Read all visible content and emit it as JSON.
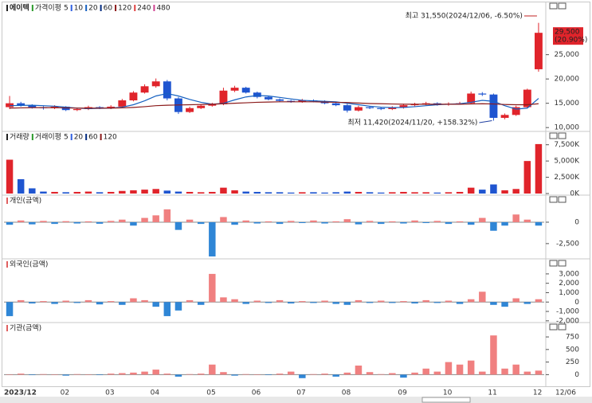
{
  "stock_name": "에이텍",
  "last_date": "12/06",
  "chart_data": [
    {
      "type": "candlestick",
      "categories": [
        "2023/12",
        null,
        null,
        null,
        null,
        "02",
        null,
        null,
        null,
        "03",
        null,
        null,
        null,
        "04",
        null,
        null,
        null,
        null,
        "05",
        null,
        null,
        null,
        "06",
        null,
        null,
        null,
        "07",
        null,
        null,
        null,
        "08",
        null,
        null,
        null,
        null,
        "09",
        null,
        null,
        null,
        "10",
        null,
        null,
        null,
        "11",
        null,
        null,
        null,
        "12"
      ],
      "open": [
        14200,
        15000,
        14600,
        14200,
        14000,
        14300,
        13600,
        13800,
        14200,
        14000,
        14300,
        15600,
        17200,
        18500,
        19500,
        16000,
        13200,
        14000,
        14500,
        14800,
        17600,
        18200,
        17200,
        16300,
        15800,
        15500,
        15300,
        15600,
        15400,
        15000,
        14600,
        13500,
        14200,
        14000,
        13800,
        14100,
        14600,
        14800,
        15000,
        14700,
        14900,
        15000,
        17000,
        16800,
        12000,
        12600,
        14200,
        22000
      ],
      "high": [
        16500,
        15300,
        14800,
        14400,
        14600,
        14400,
        14100,
        14500,
        14400,
        14600,
        15900,
        17500,
        18900,
        20100,
        19800,
        16300,
        14300,
        14800,
        15100,
        18200,
        18600,
        18400,
        17400,
        16500,
        16000,
        15700,
        15900,
        15800,
        15600,
        15200,
        14900,
        14500,
        14400,
        14200,
        14400,
        14900,
        15100,
        15300,
        15200,
        15200,
        15300,
        17400,
        17300,
        17000,
        12900,
        14500,
        18000,
        31550
      ],
      "low": [
        13800,
        14300,
        13900,
        13700,
        13800,
        13400,
        13400,
        13600,
        13800,
        13800,
        14100,
        15400,
        17000,
        18200,
        15600,
        12800,
        13000,
        13800,
        14300,
        14600,
        17300,
        17000,
        16000,
        15600,
        15300,
        15100,
        15100,
        15200,
        14800,
        14400,
        13100,
        13300,
        13800,
        13600,
        13600,
        13900,
        14400,
        14600,
        14500,
        14500,
        14700,
        14800,
        16500,
        11420,
        11700,
        12400,
        14000,
        21500
      ],
      "close": [
        15000,
        14600,
        14200,
        14000,
        14300,
        13600,
        13800,
        14200,
        14000,
        14300,
        15600,
        17200,
        18500,
        19500,
        16000,
        13200,
        14000,
        14500,
        14800,
        17600,
        18200,
        17200,
        16300,
        15800,
        15500,
        15300,
        15600,
        15400,
        15000,
        14600,
        13500,
        14200,
        14000,
        13800,
        14100,
        14600,
        14800,
        15000,
        14700,
        14900,
        15000,
        17000,
        16800,
        12000,
        12600,
        14200,
        17800,
        29500
      ],
      "up_color": "#e0242b",
      "down_color": "#1f55d0",
      "legend_title": "가격이평",
      "series": [
        {
          "name": "5",
          "color": "#2a9a2a"
        },
        {
          "name": "10",
          "color": "#2f5fe0"
        },
        {
          "name": "20",
          "color": "#1560c0",
          "values": [
            14500,
            14550,
            14600,
            14500,
            14400,
            14200,
            14000,
            13900,
            13950,
            14000,
            14200,
            14700,
            15500,
            16500,
            17000,
            16500,
            15800,
            15200,
            14800,
            15000,
            15700,
            16300,
            16600,
            16500,
            16200,
            15900,
            15600,
            15500,
            15400,
            15300,
            15000,
            14700,
            14400,
            14200,
            14100,
            14150,
            14300,
            14500,
            14700,
            14800,
            14900,
            15200,
            15600,
            15400,
            14500,
            13800,
            14000,
            16000
          ]
        },
        {
          "name": "60",
          "color": "#002a80"
        },
        {
          "name": "120",
          "color": "#8b1a1a",
          "values": [
            14000,
            14050,
            14100,
            14100,
            14100,
            14050,
            14000,
            14000,
            14000,
            14000,
            14050,
            14150,
            14300,
            14500,
            14600,
            14650,
            14700,
            14750,
            14800,
            14900,
            15000,
            15100,
            15200,
            15250,
            15300,
            15300,
            15300,
            15300,
            15250,
            15200,
            15150,
            15050,
            14950,
            14900,
            14850,
            14800,
            14800,
            14800,
            14800,
            14800,
            14800,
            14850,
            14900,
            14850,
            14750,
            14700,
            14700,
            14900
          ]
        },
        {
          "name": "240",
          "color": "#e04040"
        },
        {
          "name": "480",
          "color": "#d04090"
        }
      ],
      "ylim": [
        9700,
        33300
      ],
      "yticks": [
        {
          "value": 10000,
          "label": "10,000"
        },
        {
          "value": 15000,
          "label": "15,000"
        },
        {
          "value": 20000,
          "label": "20,000"
        },
        {
          "value": 25000,
          "label": "25,000"
        }
      ],
      "annotations": {
        "high": "최고 31,550(2024/12/06, -6.50%)",
        "low": "최저 11,420(2024/11/20, +158.32%)"
      },
      "last_price_label": "29,500",
      "last_change_label": "(20.90%)"
    },
    {
      "type": "bar",
      "title": "거래량",
      "legend_title": "거래이평",
      "series": [
        {
          "name": "5",
          "color": "#2a9a2a"
        },
        {
          "name": "20",
          "color": "#2f5fe0"
        },
        {
          "name": "60",
          "color": "#002a80"
        },
        {
          "name": "120",
          "color": "#8b1a1a"
        }
      ],
      "values": [
        5200,
        2200,
        800,
        300,
        250,
        200,
        250,
        300,
        200,
        250,
        400,
        500,
        600,
        700,
        450,
        300,
        250,
        200,
        250,
        900,
        500,
        300,
        250,
        200,
        200,
        150,
        200,
        200,
        150,
        200,
        300,
        250,
        200,
        150,
        200,
        250,
        200,
        200,
        150,
        200,
        250,
        900,
        600,
        1400,
        500,
        700,
        5000,
        7600
      ],
      "ylim": [
        0,
        8200
      ],
      "yticks": [
        {
          "value": 0,
          "label": "0K"
        },
        {
          "value": 2500,
          "label": "2,500K"
        },
        {
          "value": 5000,
          "label": "5,000K"
        },
        {
          "value": 7500,
          "label": "7,500K"
        }
      ]
    },
    {
      "type": "bar",
      "title": "개인(금액)",
      "pos_color": "#f08080",
      "neg_color": "#2f86d6",
      "values": [
        -300,
        200,
        -250,
        150,
        -200,
        120,
        -150,
        100,
        -180,
        150,
        300,
        -400,
        500,
        800,
        1500,
        -900,
        300,
        -200,
        -4000,
        600,
        -300,
        200,
        -150,
        100,
        -200,
        150,
        -100,
        200,
        -150,
        100,
        350,
        -250,
        150,
        -200,
        100,
        -150,
        200,
        -100,
        150,
        -200,
        100,
        -300,
        500,
        -1000,
        -400,
        900,
        300,
        -400
      ],
      "ylim": [
        -4000,
        1950
      ],
      "yticks": [
        0,
        {
          "value": -2500,
          "label": "-2,500"
        }
      ]
    },
    {
      "type": "bar",
      "title": "외국인(금액)",
      "pos_color": "#f08080",
      "neg_color": "#2f86d6",
      "values": [
        -1500,
        200,
        -150,
        100,
        -200,
        150,
        -100,
        200,
        -250,
        100,
        -300,
        400,
        200,
        -500,
        -1500,
        -900,
        200,
        -300,
        3000,
        500,
        300,
        -200,
        150,
        -100,
        200,
        -150,
        100,
        -100,
        150,
        -200,
        -300,
        200,
        -100,
        150,
        -100,
        100,
        -150,
        200,
        -100,
        150,
        -200,
        300,
        1100,
        -300,
        -500,
        400,
        -200,
        300
      ],
      "ylim": [
        -2100,
        3500
      ],
      "yticks": [
        {
          "value": 3000,
          "label": "3,000"
        },
        {
          "value": 2000,
          "label": "2,000"
        },
        {
          "value": 1000,
          "label": "1,000"
        },
        0,
        {
          "value": -1000,
          "label": "-1,000"
        },
        {
          "value": -2000,
          "label": "-2,000"
        }
      ]
    },
    {
      "type": "bar",
      "title": "기관(금액)",
      "pos_color": "#f08080",
      "neg_color": "#2f86d6",
      "values": [
        0,
        20,
        -10,
        10,
        0,
        -20,
        10,
        0,
        -10,
        20,
        30,
        40,
        60,
        100,
        20,
        -40,
        10,
        20,
        200,
        50,
        -20,
        10,
        0,
        -10,
        20,
        60,
        -70,
        10,
        20,
        -40,
        40,
        180,
        50,
        10,
        30,
        -60,
        40,
        120,
        60,
        250,
        200,
        280,
        60,
        780,
        120,
        200,
        60,
        80
      ],
      "ylim": [
        -200,
        830
      ],
      "yticks": [
        0,
        250,
        500,
        750
      ]
    }
  ]
}
